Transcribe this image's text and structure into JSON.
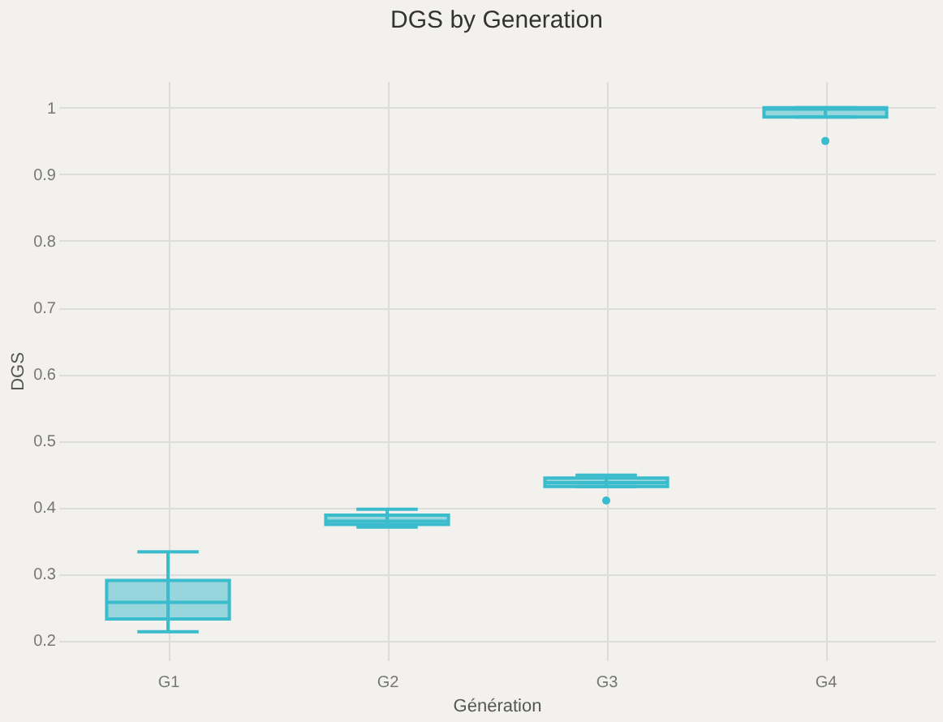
{
  "chart_data": {
    "type": "box",
    "title": "DGS by Generation",
    "xlabel": "Génération",
    "ylabel": "DGS",
    "categories": [
      "G1",
      "G2",
      "G3",
      "G4"
    ],
    "color": "#3bbccc",
    "boxes": [
      {
        "low": 0.213,
        "q1": 0.232,
        "median": 0.257,
        "q3": 0.29,
        "high": 0.333
      },
      {
        "low": 0.37,
        "q1": 0.374,
        "median": 0.379,
        "q3": 0.388,
        "high": 0.397
      },
      {
        "low": 0.431,
        "q1": 0.431,
        "median": 0.437,
        "q3": 0.444,
        "high": 0.448,
        "outliers": [
          0.41
        ]
      },
      {
        "low": 0.986,
        "q1": 0.986,
        "median": 0.998,
        "q3": 1.0,
        "high": 1.0,
        "outliers": [
          0.95
        ]
      }
    ],
    "ylim": [
      0.17,
      1.04
    ],
    "yticks": [
      0.2,
      0.3,
      0.4,
      0.5,
      0.6,
      0.7,
      0.8,
      0.9,
      {
        "value": 1,
        "label": "1"
      }
    ],
    "grid": true
  }
}
